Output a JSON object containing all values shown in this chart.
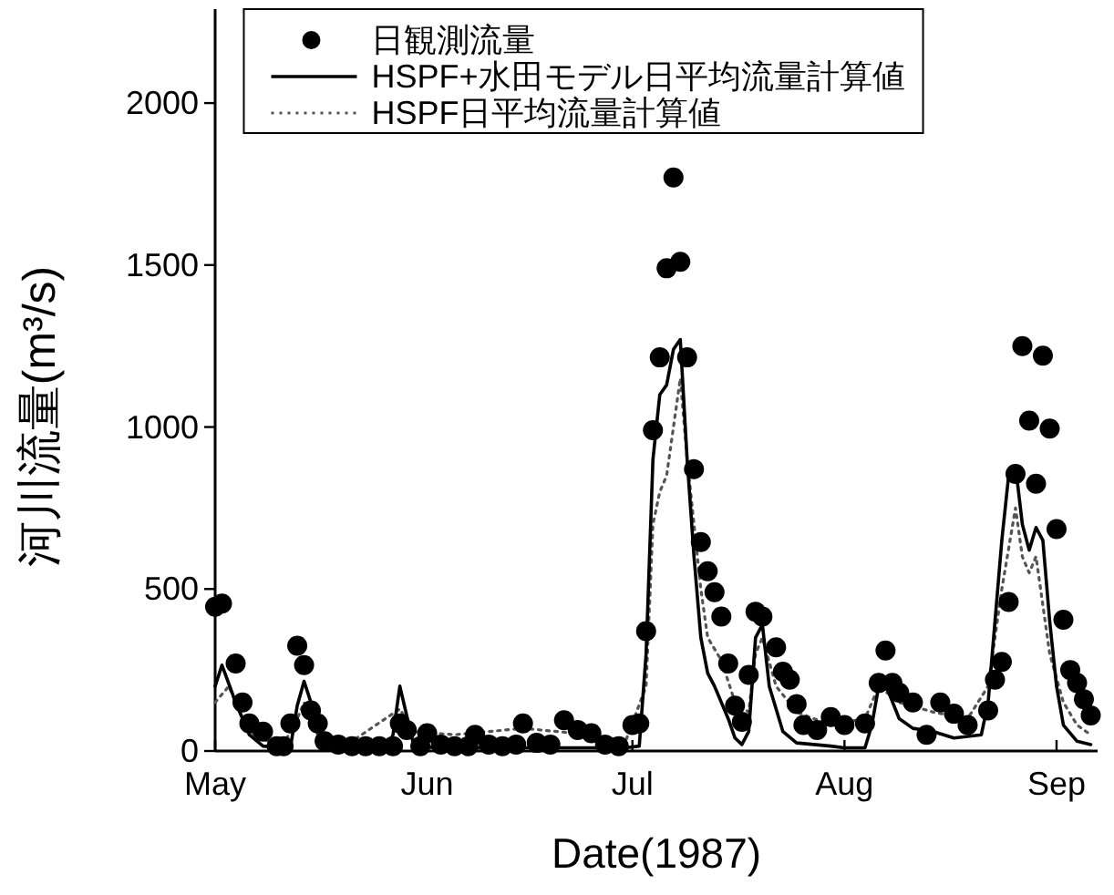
{
  "chart_data": {
    "type": "line",
    "xlabel": "Date(1987)",
    "ylabel": "河川流量(m³/s)",
    "xlim": [
      "1987-05-01",
      "1987-09-07"
    ],
    "xticks": [
      {
        "value": "1987-05-01",
        "label": "May"
      },
      {
        "value": "1987-06-01",
        "label": "Jun"
      },
      {
        "value": "1987-07-01",
        "label": "Jul"
      },
      {
        "value": "1987-08-01",
        "label": "Aug"
      },
      {
        "value": "1987-09-01",
        "label": "Sep"
      }
    ],
    "ylim": [
      0,
      2290
    ],
    "yticks": [
      0,
      500,
      1000,
      1500,
      2000
    ],
    "grid": false,
    "legend": "top",
    "series": [
      {
        "name": "日観測流量",
        "type": "scatter",
        "marker": "circle",
        "color": "#000000",
        "x": [
          "1987-05-01",
          "1987-05-02",
          "1987-05-04",
          "1987-05-05",
          "1987-05-06",
          "1987-05-08",
          "1987-05-10",
          "1987-05-11",
          "1987-05-12",
          "1987-05-13",
          "1987-05-14",
          "1987-05-15",
          "1987-05-16",
          "1987-05-17",
          "1987-05-19",
          "1987-05-21",
          "1987-05-23",
          "1987-05-25",
          "1987-05-27",
          "1987-05-28",
          "1987-05-29",
          "1987-05-31",
          "1987-06-01",
          "1987-06-03",
          "1987-06-05",
          "1987-06-07",
          "1987-06-08",
          "1987-06-10",
          "1987-06-12",
          "1987-06-14",
          "1987-06-15",
          "1987-06-17",
          "1987-06-19",
          "1987-06-21",
          "1987-06-23",
          "1987-06-25",
          "1987-06-27",
          "1987-06-29",
          "1987-07-01",
          "1987-07-02",
          "1987-07-03",
          "1987-07-04",
          "1987-07-05",
          "1987-07-06",
          "1987-07-07",
          "1987-07-08",
          "1987-07-09",
          "1987-07-10",
          "1987-07-11",
          "1987-07-12",
          "1987-07-13",
          "1987-07-14",
          "1987-07-15",
          "1987-07-16",
          "1987-07-17",
          "1987-07-18",
          "1987-07-19",
          "1987-07-20",
          "1987-07-22",
          "1987-07-23",
          "1987-07-24",
          "1987-07-25",
          "1987-07-26",
          "1987-07-28",
          "1987-07-30",
          "1987-08-01",
          "1987-08-04",
          "1987-08-06",
          "1987-08-07",
          "1987-08-08",
          "1987-08-09",
          "1987-08-11",
          "1987-08-13",
          "1987-08-15",
          "1987-08-17",
          "1987-08-19",
          "1987-08-22",
          "1987-08-23",
          "1987-08-24",
          "1987-08-25",
          "1987-08-26",
          "1987-08-27",
          "1987-08-28",
          "1987-08-29",
          "1987-08-30",
          "1987-08-31",
          "1987-09-01",
          "1987-09-02",
          "1987-09-03",
          "1987-09-04",
          "1987-09-05",
          "1987-09-06"
        ],
        "values": [
          445,
          455,
          270,
          150,
          85,
          60,
          15,
          15,
          85,
          325,
          265,
          125,
          85,
          30,
          20,
          15,
          15,
          15,
          15,
          85,
          65,
          15,
          55,
          20,
          15,
          15,
          50,
          20,
          15,
          20,
          85,
          25,
          20,
          95,
          65,
          55,
          20,
          15,
          80,
          85,
          370,
          990,
          1215,
          1490,
          1770,
          1510,
          1215,
          870,
          645,
          555,
          490,
          415,
          270,
          140,
          90,
          235,
          430,
          415,
          320,
          245,
          220,
          145,
          80,
          65,
          105,
          80,
          85,
          210,
          310,
          210,
          180,
          150,
          50,
          150,
          115,
          80,
          125,
          220,
          275,
          460,
          855,
          1250,
          1020,
          825,
          1220,
          995,
          685,
          405,
          250,
          210,
          160,
          110
        ]
      },
      {
        "name": "HSPF+水田モデル日平均流量計算値",
        "type": "line",
        "line_style": "solid",
        "color": "#000000",
        "x": [
          "1987-05-01",
          "1987-05-02",
          "1987-05-04",
          "1987-05-06",
          "1987-05-08",
          "1987-05-11",
          "1987-05-12",
          "1987-05-13",
          "1987-05-14",
          "1987-05-15",
          "1987-05-17",
          "1987-05-21",
          "1987-05-26",
          "1987-05-27",
          "1987-05-28",
          "1987-05-29",
          "1987-05-30",
          "1987-06-02",
          "1987-06-30",
          "1987-07-02",
          "1987-07-03",
          "1987-07-04",
          "1987-07-05",
          "1987-07-06",
          "1987-07-07",
          "1987-07-08",
          "1987-07-09",
          "1987-07-10",
          "1987-07-11",
          "1987-07-12",
          "1987-07-13",
          "1987-07-15",
          "1987-07-16",
          "1987-07-17",
          "1987-07-18",
          "1987-07-19",
          "1987-07-20",
          "1987-07-21",
          "1987-07-23",
          "1987-07-25",
          "1987-07-30",
          "1987-08-01",
          "1987-08-04",
          "1987-08-05",
          "1987-08-06",
          "1987-08-07",
          "1987-08-09",
          "1987-08-11",
          "1987-08-14",
          "1987-08-17",
          "1987-08-21",
          "1987-08-22",
          "1987-08-23",
          "1987-08-24",
          "1987-08-25",
          "1987-08-26",
          "1987-08-27",
          "1987-08-28",
          "1987-08-29",
          "1987-08-30",
          "1987-08-31",
          "1987-09-01",
          "1987-09-02",
          "1987-09-04",
          "1987-09-06"
        ],
        "values": [
          200,
          265,
          150,
          50,
          15,
          10,
          10,
          140,
          215,
          150,
          20,
          5,
          5,
          50,
          200,
          110,
          20,
          10,
          10,
          15,
          300,
          900,
          1100,
          1130,
          1240,
          1270,
          900,
          600,
          350,
          240,
          200,
          100,
          40,
          20,
          60,
          350,
          390,
          200,
          60,
          25,
          15,
          10,
          10,
          80,
          200,
          205,
          100,
          70,
          60,
          40,
          50,
          150,
          400,
          650,
          850,
          880,
          700,
          620,
          690,
          650,
          400,
          200,
          80,
          30,
          20
        ]
      },
      {
        "name": "HSPF日平均流量計算値",
        "type": "line",
        "line_style": "dotted",
        "color": "#555555",
        "x": [
          "1987-05-01",
          "1987-05-03",
          "1987-05-05",
          "1987-05-07",
          "1987-05-11",
          "1987-05-13",
          "1987-05-14",
          "1987-05-16",
          "1987-05-21",
          "1987-05-28",
          "1987-05-30",
          "1987-06-05",
          "1987-06-10",
          "1987-06-15",
          "1987-06-20",
          "1987-06-25",
          "1987-06-30",
          "1987-07-03",
          "1987-07-04",
          "1987-07-05",
          "1987-07-06",
          "1987-07-07",
          "1987-07-08",
          "1987-07-09",
          "1987-07-10",
          "1987-07-11",
          "1987-07-12",
          "1987-07-14",
          "1987-07-16",
          "1987-07-18",
          "1987-07-19",
          "1987-07-20",
          "1987-07-22",
          "1987-07-25",
          "1987-07-30",
          "1987-08-04",
          "1987-08-06",
          "1987-08-09",
          "1987-08-14",
          "1987-08-19",
          "1987-08-22",
          "1987-08-24",
          "1987-08-26",
          "1987-08-27",
          "1987-08-28",
          "1987-08-29",
          "1987-08-30",
          "1987-08-31",
          "1987-09-02",
          "1987-09-04",
          "1987-09-06"
        ],
        "values": [
          150,
          200,
          100,
          40,
          20,
          100,
          150,
          50,
          30,
          130,
          60,
          50,
          60,
          70,
          60,
          50,
          30,
          200,
          700,
          800,
          850,
          1000,
          1150,
          900,
          700,
          500,
          350,
          280,
          150,
          120,
          300,
          350,
          200,
          120,
          80,
          100,
          200,
          150,
          120,
          100,
          200,
          500,
          750,
          600,
          550,
          600,
          450,
          300,
          150,
          80,
          50
        ]
      }
    ]
  }
}
